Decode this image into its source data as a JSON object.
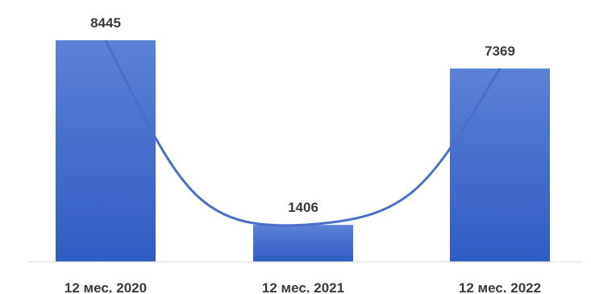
{
  "chart_data": {
    "type": "bar",
    "categories": [
      "12 мес. 2020",
      "12 мес. 2021",
      "12 мес. 2022"
    ],
    "values": [
      8445,
      1406,
      7369
    ],
    "title": "",
    "xlabel": "",
    "ylabel": "",
    "ylim": [
      0,
      8445
    ],
    "grid": false,
    "legend": "none",
    "trendline": "polynomial",
    "colors": {
      "bar_top": "#5b82d6",
      "bar_bottom": "#2f5cc2",
      "trend": "#4a6fc9",
      "axis": "#d9d9d9",
      "text": "#3a3a3a"
    }
  }
}
